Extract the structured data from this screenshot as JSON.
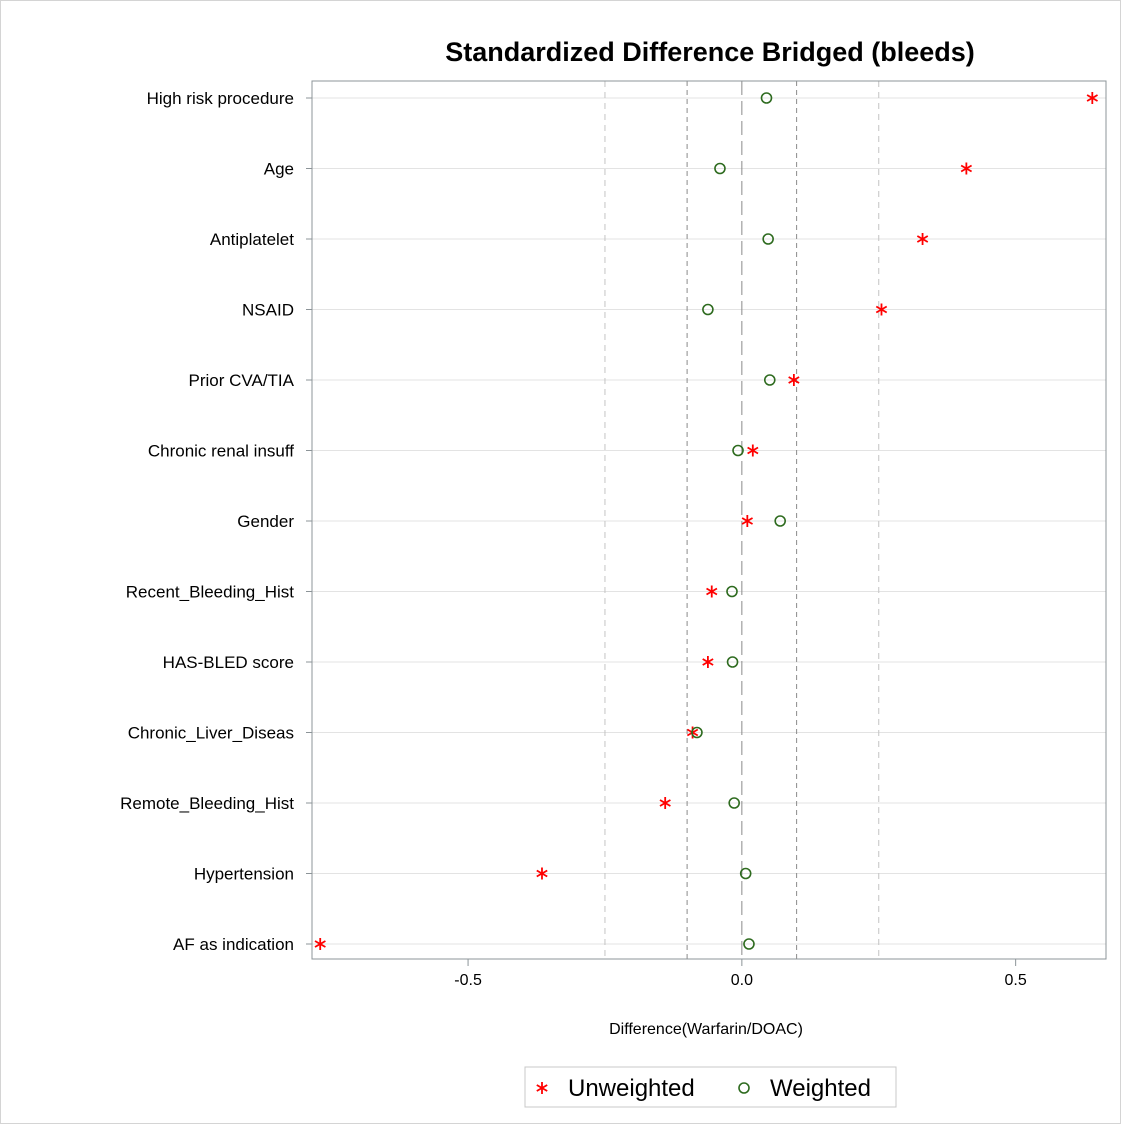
{
  "chart_data": {
    "type": "scatter",
    "title": "Standardized Difference Bridged (bleeds)",
    "xlabel": "Difference(Warfarin/DOAC)",
    "ylabel": "",
    "xlim": [
      -0.785,
      0.665
    ],
    "xticks": [
      -0.5,
      0.0,
      0.5
    ],
    "xtick_labels": [
      "-0.5",
      "0.0",
      "0.5"
    ],
    "reference_lines": [
      -0.25,
      -0.1,
      0.0,
      0.1,
      0.25
    ],
    "categories": [
      "High risk procedure",
      "Age",
      "Antiplatelet",
      "NSAID",
      "Prior CVA/TIA",
      "Chronic renal insuff",
      "Gender",
      "Recent_Bleeding_Hist",
      "HAS-BLED score",
      "Chronic_Liver_Diseas",
      "Remote_Bleeding_Hist",
      "Hypertension",
      "AF as indication"
    ],
    "series": [
      {
        "name": "Unweighted",
        "marker": "star",
        "color": "#ff0000",
        "values": [
          0.64,
          0.41,
          0.33,
          0.255,
          0.095,
          0.02,
          0.01,
          -0.055,
          -0.062,
          -0.09,
          -0.14,
          -0.365,
          -0.77
        ]
      },
      {
        "name": "Weighted",
        "marker": "circle",
        "color": "#2e6b1f",
        "values": [
          0.045,
          -0.04,
          0.048,
          -0.062,
          0.051,
          -0.007,
          0.07,
          -0.018,
          -0.017,
          -0.082,
          -0.014,
          0.007,
          0.013
        ]
      }
    ],
    "grid": "horizontal",
    "legend_position": "bottom"
  }
}
